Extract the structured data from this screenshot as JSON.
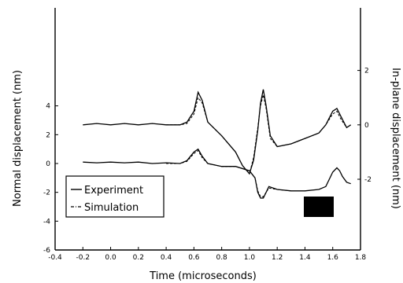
{
  "chart_data": {
    "type": "line",
    "title": "",
    "xlabel": "Time (microseconds)",
    "ylabel": "Normal displacement (nm)",
    "ylabel_right": "In-plane displacement (nm)",
    "xlim": [
      -0.4,
      1.8
    ],
    "ylim": [
      -6,
      10.8
    ],
    "ylim_right": [
      -4.6,
      4.3
    ],
    "x_ticks": [
      -0.4,
      -0.2,
      0.0,
      0.2,
      0.4,
      0.6,
      0.8,
      1.0,
      1.2,
      1.4,
      1.6,
      1.8
    ],
    "x_tick_labels": [
      "-0.4",
      "-0.2",
      "0.0",
      "0.2",
      "0.4",
      "0.6",
      "0.8",
      "1.0",
      "1.2",
      "1.4",
      "1.6",
      "1.8"
    ],
    "y_ticks": [
      -6,
      -4,
      -2,
      0,
      2,
      4
    ],
    "y_tick_labels": [
      "-6",
      "-4",
      "-2",
      "0",
      "2",
      "4"
    ],
    "y_right_ticks": [
      2,
      0,
      -2
    ],
    "y_right_tick_labels": [
      "2",
      "0",
      "-2"
    ],
    "legend": {
      "placement": "lower-left",
      "entries": [
        "Experiment",
        "Simulation"
      ]
    },
    "grid": false,
    "series": [
      {
        "name": "Experiment",
        "axis": "right",
        "x": [
          -0.2,
          -0.1,
          0.0,
          0.1,
          0.2,
          0.3,
          0.4,
          0.5,
          0.55,
          0.6,
          0.63,
          0.66,
          0.7,
          0.8,
          0.9,
          0.95,
          1.0,
          1.03,
          1.06,
          1.08,
          1.1,
          1.12,
          1.15,
          1.2,
          1.3,
          1.4,
          1.5,
          1.55,
          1.6,
          1.63,
          1.66,
          1.7,
          1.73
        ],
        "y": [
          0.0,
          0.05,
          0.0,
          0.05,
          0.0,
          0.05,
          0.0,
          0.0,
          0.1,
          0.5,
          1.2,
          0.9,
          0.1,
          -0.4,
          -1.0,
          -1.5,
          -1.8,
          -1.3,
          -0.2,
          0.8,
          1.3,
          0.7,
          -0.4,
          -0.8,
          -0.7,
          -0.5,
          -0.3,
          0.0,
          0.5,
          0.6,
          0.3,
          -0.1,
          0.0
        ]
      },
      {
        "name": "Simulation",
        "axis": "right",
        "x": [
          0.4,
          0.5,
          0.55,
          0.6,
          0.63,
          0.66,
          0.7,
          0.8,
          0.9,
          0.95,
          1.0,
          1.03,
          1.06,
          1.08,
          1.1,
          1.12,
          1.15,
          1.2,
          1.3,
          1.4,
          1.5,
          1.55,
          1.6,
          1.63,
          1.66,
          1.7
        ],
        "y": [
          0.0,
          0.0,
          0.05,
          0.4,
          1.0,
          0.8,
          0.1,
          -0.4,
          -1.0,
          -1.5,
          -1.8,
          -1.2,
          -0.1,
          0.7,
          1.1,
          0.6,
          -0.5,
          -0.8,
          -0.7,
          -0.5,
          -0.3,
          0.0,
          0.4,
          0.5,
          0.2,
          -0.1
        ]
      },
      {
        "name": "Experiment",
        "axis": "left",
        "x": [
          -0.2,
          -0.1,
          0.0,
          0.1,
          0.2,
          0.3,
          0.4,
          0.5,
          0.55,
          0.6,
          0.63,
          0.66,
          0.7,
          0.8,
          0.9,
          1.0,
          1.04,
          1.06,
          1.08,
          1.1,
          1.12,
          1.14,
          1.2,
          1.3,
          1.4,
          1.5,
          1.55,
          1.6,
          1.63,
          1.65,
          1.67,
          1.7,
          1.73
        ],
        "y": [
          0.1,
          0.05,
          0.1,
          0.05,
          0.1,
          0.0,
          0.05,
          0.0,
          0.2,
          0.8,
          1.0,
          0.5,
          0.0,
          -0.2,
          -0.2,
          -0.5,
          -1.0,
          -2.0,
          -2.4,
          -2.4,
          -2.0,
          -1.6,
          -1.8,
          -1.9,
          -1.9,
          -1.8,
          -1.6,
          -0.6,
          -0.3,
          -0.5,
          -0.9,
          -1.3,
          -1.4
        ]
      },
      {
        "name": "Simulation",
        "axis": "left",
        "x": [
          0.4,
          0.5,
          0.55,
          0.6,
          0.63,
          0.66,
          0.7,
          0.8,
          0.9,
          1.0,
          1.04,
          1.06,
          1.08,
          1.1,
          1.12,
          1.14,
          1.2,
          1.3
        ],
        "y": [
          0.0,
          0.0,
          0.15,
          0.7,
          0.9,
          0.4,
          0.0,
          -0.2,
          -0.2,
          -0.5,
          -1.0,
          -1.9,
          -2.3,
          -2.3,
          -2.0,
          -1.7,
          -1.8,
          -1.9
        ]
      }
    ]
  }
}
